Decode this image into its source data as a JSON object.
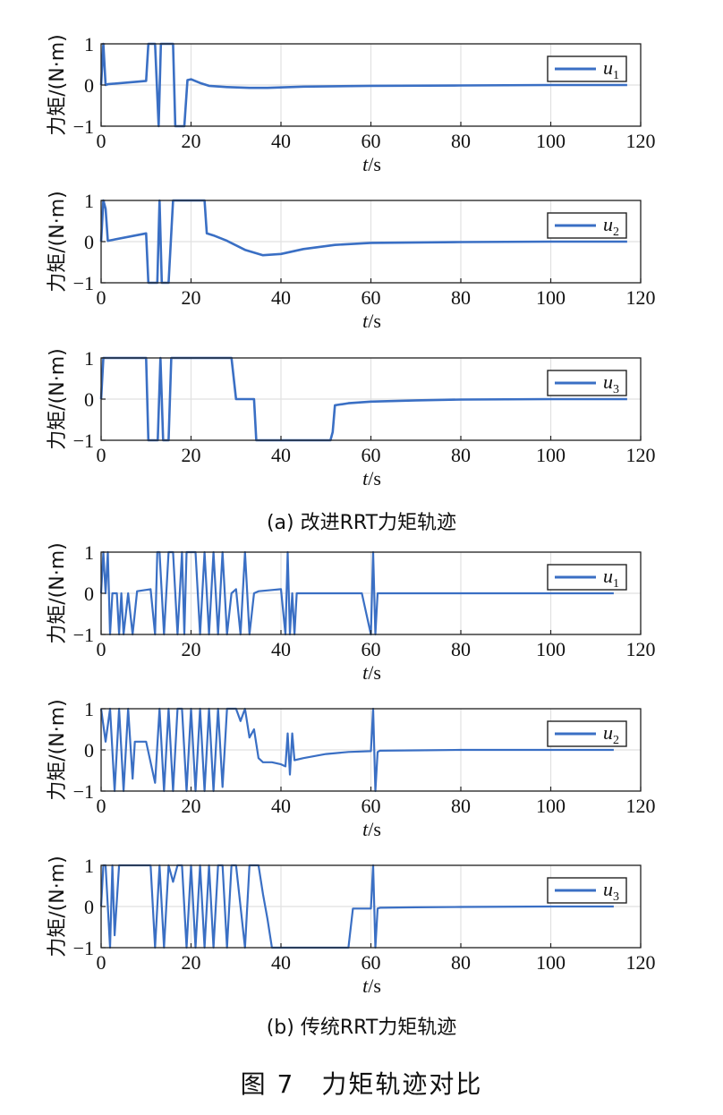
{
  "figure": {
    "title": "图 7　力矩轨迹对比",
    "subcaptions": [
      "(a) 改进RRT力矩轨迹",
      "(b) 传统RRT力矩轨迹"
    ]
  },
  "style": {
    "line_color": "#3a6fc4",
    "grid_color": "#e1e1e1",
    "axis_color": "#222222"
  },
  "chart_data": [
    {
      "type": "line",
      "panel": "a1",
      "ylabel": "力矩/(N·m)",
      "xlabel_var": "t",
      "xlabel_unit": "/s",
      "xlim": [
        0,
        120
      ],
      "ylim": [
        -1,
        1
      ],
      "xticks": [
        "0",
        "20",
        "40",
        "60",
        "80",
        "100",
        "120"
      ],
      "yticks": [
        "1",
        "0",
        "−1"
      ],
      "grid": true,
      "legend_position": "top-right",
      "series": [
        {
          "name": "u",
          "subscript": "1",
          "x": [
            0,
            0.5,
            1,
            1.5,
            10,
            10.5,
            11,
            12,
            12.8,
            13.3,
            13.8,
            15,
            16,
            16.5,
            17,
            17.5,
            18,
            18.5,
            19.2,
            20,
            22,
            24,
            28,
            33,
            37,
            45,
            60,
            80,
            100,
            117
          ],
          "y": [
            0,
            1,
            0,
            0.02,
            0.1,
            1,
            1,
            1,
            -1,
            1,
            1,
            1,
            1,
            -1,
            -1,
            -1,
            -1,
            -1,
            0.12,
            0.14,
            0.05,
            -0.02,
            -0.05,
            -0.07,
            -0.07,
            -0.04,
            -0.02,
            -0.01,
            0,
            0
          ]
        }
      ]
    },
    {
      "type": "line",
      "panel": "a2",
      "ylabel": "力矩/(N·m)",
      "xlabel_var": "t",
      "xlabel_unit": "/s",
      "xlim": [
        0,
        120
      ],
      "ylim": [
        -1,
        1
      ],
      "xticks": [
        "0",
        "20",
        "40",
        "60",
        "80",
        "100",
        "120"
      ],
      "yticks": [
        "1",
        "0",
        "−1"
      ],
      "grid": true,
      "legend_position": "top-right",
      "series": [
        {
          "name": "u",
          "subscript": "2",
          "x": [
            0,
            0.5,
            1,
            1.5,
            10,
            10.5,
            12,
            12.5,
            13,
            13.5,
            14,
            15,
            16,
            22,
            23,
            23.5,
            25,
            28,
            32,
            36,
            40,
            45,
            52,
            60,
            80,
            100,
            117
          ],
          "y": [
            0,
            1,
            0.8,
            0.02,
            0.2,
            -1,
            -1,
            -1,
            1,
            -1,
            -1,
            -1,
            1,
            1,
            1,
            0.2,
            0.15,
            0.02,
            -0.2,
            -0.33,
            -0.3,
            -0.18,
            -0.08,
            -0.03,
            -0.01,
            0,
            0
          ]
        }
      ]
    },
    {
      "type": "line",
      "panel": "a3",
      "ylabel": "力矩/(N·m)",
      "xlabel_var": "t",
      "xlabel_unit": "/s",
      "xlim": [
        0,
        120
      ],
      "ylim": [
        -1,
        1
      ],
      "xticks": [
        "0",
        "20",
        "40",
        "60",
        "80",
        "100",
        "120"
      ],
      "yticks": [
        "1",
        "0",
        "−1"
      ],
      "grid": true,
      "legend_position": "top-right",
      "series": [
        {
          "name": "u",
          "subscript": "3",
          "x": [
            0,
            0.5,
            10,
            10.5,
            12,
            12.6,
            13.2,
            13.8,
            15,
            15.6,
            16,
            29,
            30,
            34,
            34.5,
            51,
            51.5,
            52,
            55,
            60,
            70,
            80,
            100,
            117
          ],
          "y": [
            0,
            1,
            1,
            -1,
            -1,
            -1,
            1,
            -1,
            -1,
            1,
            1,
            1,
            0,
            0,
            -1,
            -1,
            -0.8,
            -0.15,
            -0.1,
            -0.06,
            -0.03,
            -0.01,
            0,
            0
          ]
        }
      ]
    },
    {
      "type": "line",
      "panel": "b1",
      "ylabel": "力矩/(N·m)",
      "xlabel_var": "t",
      "xlabel_unit": "/s",
      "xlim": [
        0,
        120
      ],
      "ylim": [
        -1,
        1
      ],
      "xticks": [
        "0",
        "20",
        "40",
        "60",
        "80",
        "100",
        "120"
      ],
      "yticks": [
        "1",
        "0",
        "−1"
      ],
      "grid": true,
      "legend_position": "top-right",
      "series": [
        {
          "name": "u",
          "subscript": "1",
          "x": [
            0,
            0.5,
            1,
            1.5,
            2,
            2.5,
            3,
            3.5,
            4,
            4.5,
            5,
            6,
            7,
            8,
            11,
            12,
            12.5,
            13,
            14,
            15,
            16,
            17,
            18,
            18.5,
            19,
            20,
            21,
            22,
            23,
            24,
            25,
            26,
            27,
            28,
            29,
            30,
            31,
            32,
            33,
            34,
            35,
            38,
            40,
            41,
            41.5,
            42,
            42.5,
            43,
            43.5,
            44,
            50,
            58,
            60,
            60.5,
            61,
            61.5,
            62,
            63,
            70,
            80,
            100,
            114
          ],
          "y": [
            0,
            1,
            0,
            1,
            -1,
            0,
            0,
            0,
            -1,
            0,
            -1,
            0,
            -1,
            0.05,
            0.1,
            -1,
            1,
            1,
            -1,
            1,
            1,
            -1,
            1,
            -1,
            1,
            1,
            1,
            -1,
            1,
            -1,
            1,
            -1,
            1,
            -1,
            0,
            0.1,
            -1,
            1,
            -1,
            0,
            0.05,
            0.08,
            0.1,
            -1,
            1,
            -1,
            0,
            -1,
            0,
            0,
            0,
            0,
            -1,
            1,
            -1,
            0,
            0,
            0,
            0,
            0,
            0,
            0
          ]
        }
      ]
    },
    {
      "type": "line",
      "panel": "b2",
      "ylabel": "力矩/(N·m)",
      "xlabel_var": "t",
      "xlabel_unit": "/s",
      "xlim": [
        0,
        120
      ],
      "ylim": [
        -1,
        1
      ],
      "xticks": [
        "0",
        "20",
        "40",
        "60",
        "80",
        "100",
        "120"
      ],
      "yticks": [
        "1",
        "0",
        "−1"
      ],
      "grid": true,
      "legend_position": "top-right",
      "series": [
        {
          "name": "u",
          "subscript": "2",
          "x": [
            0,
            1,
            2,
            3,
            4,
            5,
            6,
            7,
            7.5,
            8,
            10,
            12,
            13,
            14,
            15,
            16,
            17,
            18,
            19,
            20,
            21,
            22,
            23,
            24,
            25,
            26,
            27,
            28,
            29,
            30,
            31,
            32,
            33,
            34,
            35,
            36,
            38,
            40,
            41,
            41.5,
            42,
            42.5,
            43,
            45,
            50,
            55,
            60,
            60.5,
            61,
            61.5,
            62,
            70,
            80,
            100,
            114
          ],
          "y": [
            1,
            0.2,
            1,
            -1,
            1,
            -1,
            1,
            -0.7,
            0.2,
            0.2,
            0.2,
            -0.8,
            1,
            -1,
            1,
            -1,
            1,
            1,
            -1,
            1,
            -1,
            1,
            -1,
            1,
            -1,
            1,
            -0.9,
            1,
            1,
            1,
            0.7,
            1,
            0.3,
            0.5,
            -0.2,
            -0.3,
            -0.3,
            -0.35,
            -0.4,
            0.4,
            -0.6,
            0.4,
            -0.25,
            -0.2,
            -0.1,
            -0.05,
            -0.03,
            1,
            -1,
            -0.05,
            -0.02,
            -0.01,
            0,
            0,
            0
          ]
        }
      ]
    },
    {
      "type": "line",
      "panel": "b3",
      "ylabel": "力矩/(N·m)",
      "xlabel_var": "t",
      "xlabel_unit": "/s",
      "xlim": [
        0,
        120
      ],
      "ylim": [
        -1,
        1
      ],
      "xticks": [
        "0",
        "20",
        "40",
        "60",
        "80",
        "100",
        "120"
      ],
      "yticks": [
        "1",
        "0",
        "−1"
      ],
      "grid": true,
      "legend_position": "top-right",
      "series": [
        {
          "name": "u",
          "subscript": "3",
          "x": [
            0,
            0.5,
            1,
            2,
            2.5,
            3,
            4,
            11,
            12,
            13,
            14,
            15,
            16,
            17,
            18,
            19,
            20,
            21,
            22,
            23,
            24,
            25,
            26,
            27,
            28,
            29,
            30,
            32,
            33,
            34,
            35,
            36,
            37,
            38,
            39,
            55,
            56,
            60,
            60.5,
            61,
            61.5,
            62,
            70,
            80,
            100,
            114
          ],
          "y": [
            0,
            1,
            1,
            -1,
            1,
            -0.7,
            1,
            1,
            -1,
            1,
            -1,
            1,
            0.6,
            1,
            1,
            -1,
            1,
            -1,
            1,
            -1,
            1,
            -1,
            1,
            1,
            -1,
            1,
            1,
            -1,
            1,
            1,
            1,
            0.3,
            -0.3,
            -1,
            -1,
            -1,
            -0.05,
            -0.05,
            1,
            -1,
            -0.05,
            -0.03,
            -0.02,
            -0.01,
            0,
            0
          ]
        }
      ]
    }
  ]
}
